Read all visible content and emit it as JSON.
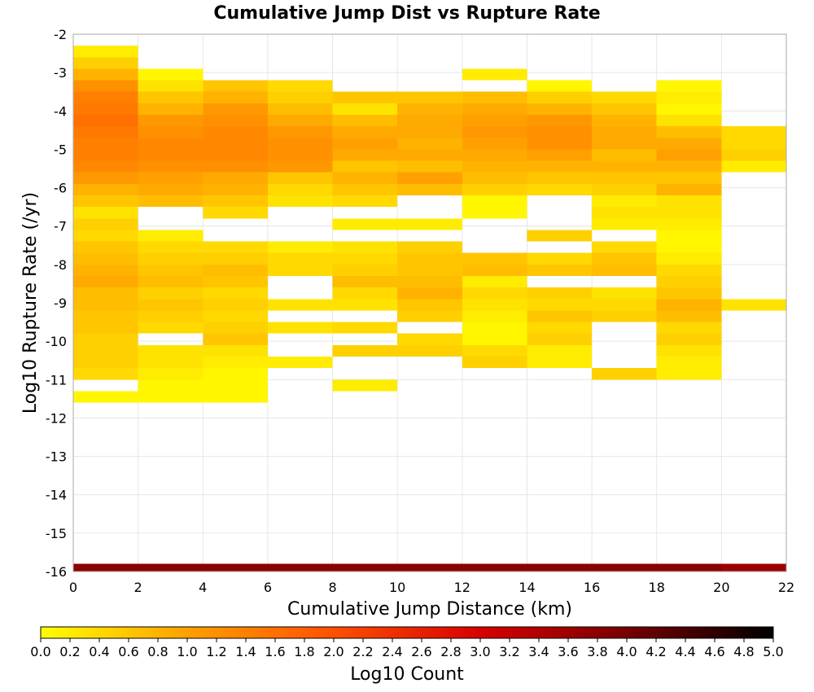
{
  "chart_data": {
    "type": "heatmap",
    "title": "Cumulative Jump Dist vs Rupture Rate",
    "xlabel": "Cumulative Jump Distance (km)",
    "ylabel": "Log10 Rupture Rate (/yr)",
    "xlim": [
      0,
      22
    ],
    "ylim": [
      -16,
      -2
    ],
    "x_ticks": [
      "0",
      "2",
      "4",
      "6",
      "8",
      "10",
      "12",
      "14",
      "16",
      "18",
      "20",
      "22"
    ],
    "y_ticks": [
      "-2",
      "-3",
      "-4",
      "-5",
      "-6",
      "-7",
      "-8",
      "-9",
      "-10",
      "-11",
      "-12",
      "-13",
      "-14",
      "-15",
      "-16"
    ],
    "grid": true,
    "x_bin_width": 2,
    "y_bin_height": 0.3,
    "colorbar": {
      "label": "Log10 Count",
      "range": [
        0,
        5
      ],
      "ticks": [
        "0.0",
        "0.2",
        "0.4",
        "0.6",
        "0.8",
        "1.0",
        "1.2",
        "1.4",
        "1.6",
        "1.8",
        "2.0",
        "2.2",
        "2.4",
        "2.6",
        "2.8",
        "3.0",
        "3.2",
        "3.4",
        "3.6",
        "3.8",
        "4.0",
        "4.2",
        "4.4",
        "4.6",
        "4.8",
        "5.0"
      ],
      "stops": [
        "#ffff00",
        "#ffa000",
        "#ff5000",
        "#d80000",
        "#780000",
        "#000000"
      ]
    },
    "columns": [
      {
        "x": 0,
        "cells": [
          [
            -2.45,
            0.2
          ],
          [
            -2.75,
            0.5
          ],
          [
            -3.05,
            0.8
          ],
          [
            -3.35,
            1.2
          ],
          [
            -3.65,
            1.4
          ],
          [
            -3.95,
            1.5
          ],
          [
            -4.25,
            1.6
          ],
          [
            -4.55,
            1.5
          ],
          [
            -4.85,
            1.4
          ],
          [
            -5.15,
            1.4
          ],
          [
            -5.45,
            1.3
          ],
          [
            -5.75,
            1.1
          ],
          [
            -6.05,
            0.8
          ],
          [
            -6.35,
            0.6
          ],
          [
            -6.65,
            0.3
          ],
          [
            -6.95,
            0.5
          ],
          [
            -7.25,
            0.4
          ],
          [
            -7.55,
            0.6
          ],
          [
            -7.85,
            0.7
          ],
          [
            -8.15,
            0.8
          ],
          [
            -8.45,
            0.9
          ],
          [
            -8.75,
            0.7
          ],
          [
            -9.05,
            0.7
          ],
          [
            -9.35,
            0.6
          ],
          [
            -9.65,
            0.6
          ],
          [
            -9.95,
            0.5
          ],
          [
            -10.25,
            0.5
          ],
          [
            -10.55,
            0.5
          ],
          [
            -10.85,
            0.4
          ],
          [
            -11.45,
            0.1
          ],
          [
            -15.95,
            3.8
          ]
        ]
      },
      {
        "x": 2,
        "cells": [
          [
            -3.05,
            0.1
          ],
          [
            -3.35,
            0.3
          ],
          [
            -3.65,
            0.6
          ],
          [
            -3.95,
            0.8
          ],
          [
            -4.25,
            1.1
          ],
          [
            -4.55,
            1.2
          ],
          [
            -4.85,
            1.3
          ],
          [
            -5.15,
            1.3
          ],
          [
            -5.45,
            1.2
          ],
          [
            -5.75,
            1.0
          ],
          [
            -6.05,
            0.9
          ],
          [
            -6.35,
            0.7
          ],
          [
            -7.25,
            0.2
          ],
          [
            -7.55,
            0.4
          ],
          [
            -7.85,
            0.5
          ],
          [
            -8.15,
            0.6
          ],
          [
            -8.45,
            0.7
          ],
          [
            -8.75,
            0.5
          ],
          [
            -9.05,
            0.6
          ],
          [
            -9.35,
            0.5
          ],
          [
            -9.65,
            0.4
          ],
          [
            -10.25,
            0.3
          ],
          [
            -10.55,
            0.3
          ],
          [
            -10.85,
            0.2
          ],
          [
            -11.15,
            0.1
          ],
          [
            -11.45,
            0.1
          ],
          [
            -15.95,
            3.8
          ]
        ]
      },
      {
        "x": 4,
        "cells": [
          [
            -3.35,
            0.6
          ],
          [
            -3.65,
            0.8
          ],
          [
            -3.95,
            1.1
          ],
          [
            -4.25,
            1.2
          ],
          [
            -4.55,
            1.3
          ],
          [
            -4.85,
            1.3
          ],
          [
            -5.15,
            1.3
          ],
          [
            -5.45,
            1.2
          ],
          [
            -5.75,
            0.9
          ],
          [
            -6.05,
            0.8
          ],
          [
            -6.35,
            0.6
          ],
          [
            -6.65,
            0.4
          ],
          [
            -7.55,
            0.4
          ],
          [
            -7.85,
            0.5
          ],
          [
            -8.15,
            0.7
          ],
          [
            -8.45,
            0.6
          ],
          [
            -8.75,
            0.4
          ],
          [
            -9.05,
            0.5
          ],
          [
            -9.35,
            0.4
          ],
          [
            -9.65,
            0.5
          ],
          [
            -9.95,
            0.6
          ],
          [
            -10.25,
            0.3
          ],
          [
            -10.55,
            0.2
          ],
          [
            -10.85,
            0.1
          ],
          [
            -11.15,
            0.1
          ],
          [
            -11.45,
            0.1
          ],
          [
            -15.95,
            3.8
          ]
        ]
      },
      {
        "x": 6,
        "cells": [
          [
            -3.35,
            0.4
          ],
          [
            -3.65,
            0.5
          ],
          [
            -3.95,
            0.7
          ],
          [
            -4.25,
            0.9
          ],
          [
            -4.55,
            1.1
          ],
          [
            -4.85,
            1.2
          ],
          [
            -5.15,
            1.2
          ],
          [
            -5.45,
            1.1
          ],
          [
            -5.75,
            0.6
          ],
          [
            -6.05,
            0.4
          ],
          [
            -6.35,
            0.3
          ],
          [
            -7.55,
            0.2
          ],
          [
            -7.85,
            0.4
          ],
          [
            -8.15,
            0.4
          ],
          [
            -9.05,
            0.3
          ],
          [
            -9.65,
            0.3
          ],
          [
            -10.55,
            0.2
          ],
          [
            -15.95,
            3.8
          ]
        ]
      },
      {
        "x": 8,
        "cells": [
          [
            -3.65,
            0.6
          ],
          [
            -3.95,
            0.3
          ],
          [
            -4.25,
            0.7
          ],
          [
            -4.55,
            0.9
          ],
          [
            -4.85,
            1.0
          ],
          [
            -5.15,
            0.9
          ],
          [
            -5.45,
            0.6
          ],
          [
            -5.75,
            0.8
          ],
          [
            -6.05,
            0.6
          ],
          [
            -6.35,
            0.4
          ],
          [
            -6.95,
            0.2
          ],
          [
            -7.55,
            0.3
          ],
          [
            -7.85,
            0.4
          ],
          [
            -8.15,
            0.5
          ],
          [
            -8.45,
            0.7
          ],
          [
            -8.75,
            0.4
          ],
          [
            -9.05,
            0.3
          ],
          [
            -9.65,
            0.4
          ],
          [
            -10.25,
            0.5
          ],
          [
            -11.15,
            0.2
          ],
          [
            -15.95,
            3.8
          ]
        ]
      },
      {
        "x": 10,
        "cells": [
          [
            -3.65,
            0.6
          ],
          [
            -3.95,
            0.8
          ],
          [
            -4.25,
            0.9
          ],
          [
            -4.55,
            0.9
          ],
          [
            -4.85,
            0.8
          ],
          [
            -5.15,
            0.9
          ],
          [
            -5.45,
            0.7
          ],
          [
            -5.75,
            1.0
          ],
          [
            -6.05,
            0.7
          ],
          [
            -6.95,
            0.2
          ],
          [
            -7.55,
            0.5
          ],
          [
            -7.85,
            0.6
          ],
          [
            -8.15,
            0.6
          ],
          [
            -8.45,
            0.7
          ],
          [
            -8.75,
            0.8
          ],
          [
            -9.05,
            0.6
          ],
          [
            -9.35,
            0.5
          ],
          [
            -9.95,
            0.4
          ],
          [
            -10.25,
            0.5
          ],
          [
            -15.95,
            3.8
          ]
        ]
      },
      {
        "x": 12,
        "cells": [
          [
            -3.05,
            0.2
          ],
          [
            -3.65,
            0.7
          ],
          [
            -3.95,
            0.9
          ],
          [
            -4.25,
            1.0
          ],
          [
            -4.55,
            1.1
          ],
          [
            -4.85,
            1.0
          ],
          [
            -5.15,
            0.9
          ],
          [
            -5.45,
            0.8
          ],
          [
            -5.75,
            0.7
          ],
          [
            -6.05,
            0.5
          ],
          [
            -6.35,
            0.1
          ],
          [
            -6.65,
            0.1
          ],
          [
            -7.85,
            0.6
          ],
          [
            -8.15,
            0.7
          ],
          [
            -8.45,
            0.2
          ],
          [
            -8.75,
            0.4
          ],
          [
            -9.05,
            0.3
          ],
          [
            -9.35,
            0.2
          ],
          [
            -9.65,
            0.1
          ],
          [
            -9.95,
            0.1
          ],
          [
            -10.25,
            0.4
          ],
          [
            -10.55,
            0.5
          ],
          [
            -15.95,
            3.8
          ]
        ]
      },
      {
        "x": 14,
        "cells": [
          [
            -3.35,
            0.1
          ],
          [
            -3.65,
            0.5
          ],
          [
            -3.95,
            0.8
          ],
          [
            -4.25,
            1.1
          ],
          [
            -4.55,
            1.2
          ],
          [
            -4.85,
            1.2
          ],
          [
            -5.15,
            1.0
          ],
          [
            -5.45,
            0.8
          ],
          [
            -5.75,
            0.6
          ],
          [
            -6.05,
            0.4
          ],
          [
            -7.25,
            0.5
          ],
          [
            -7.85,
            0.4
          ],
          [
            -8.15,
            0.6
          ],
          [
            -8.75,
            0.5
          ],
          [
            -9.05,
            0.4
          ],
          [
            -9.35,
            0.6
          ],
          [
            -9.65,
            0.4
          ],
          [
            -9.95,
            0.5
          ],
          [
            -10.25,
            0.2
          ],
          [
            -10.55,
            0.2
          ],
          [
            -15.95,
            3.8
          ]
        ]
      },
      {
        "x": 16,
        "cells": [
          [
            -3.65,
            0.4
          ],
          [
            -3.95,
            0.6
          ],
          [
            -4.25,
            0.8
          ],
          [
            -4.55,
            0.9
          ],
          [
            -4.85,
            0.9
          ],
          [
            -5.15,
            0.7
          ],
          [
            -5.45,
            0.8
          ],
          [
            -5.75,
            0.6
          ],
          [
            -6.05,
            0.5
          ],
          [
            -6.35,
            0.2
          ],
          [
            -6.65,
            0.3
          ],
          [
            -6.95,
            0.2
          ],
          [
            -7.55,
            0.4
          ],
          [
            -7.85,
            0.6
          ],
          [
            -8.15,
            0.7
          ],
          [
            -8.75,
            0.3
          ],
          [
            -9.05,
            0.4
          ],
          [
            -9.35,
            0.5
          ],
          [
            -10.85,
            0.5
          ],
          [
            -15.95,
            3.8
          ]
        ]
      },
      {
        "x": 18,
        "cells": [
          [
            -3.35,
            0.1
          ],
          [
            -3.65,
            0.2
          ],
          [
            -3.95,
            0.1
          ],
          [
            -4.25,
            0.3
          ],
          [
            -4.55,
            0.7
          ],
          [
            -4.85,
            0.9
          ],
          [
            -5.15,
            1.0
          ],
          [
            -5.45,
            0.8
          ],
          [
            -5.75,
            0.6
          ],
          [
            -6.05,
            0.8
          ],
          [
            -6.35,
            0.3
          ],
          [
            -6.65,
            0.3
          ],
          [
            -6.95,
            0.2
          ],
          [
            -7.25,
            0.1
          ],
          [
            -7.55,
            0.1
          ],
          [
            -7.85,
            0.2
          ],
          [
            -8.15,
            0.4
          ],
          [
            -8.45,
            0.5
          ],
          [
            -8.75,
            0.6
          ],
          [
            -9.05,
            0.8
          ],
          [
            -9.35,
            0.7
          ],
          [
            -9.65,
            0.4
          ],
          [
            -9.95,
            0.5
          ],
          [
            -10.25,
            0.3
          ],
          [
            -10.55,
            0.2
          ],
          [
            -10.85,
            0.2
          ],
          [
            -15.95,
            3.8
          ]
        ]
      },
      {
        "x": 20,
        "cells": [
          [
            -4.55,
            0.4
          ],
          [
            -4.85,
            0.4
          ],
          [
            -5.15,
            0.5
          ],
          [
            -5.45,
            0.2
          ],
          [
            -9.05,
            0.3
          ],
          [
            -15.95,
            3.6
          ]
        ]
      }
    ]
  }
}
